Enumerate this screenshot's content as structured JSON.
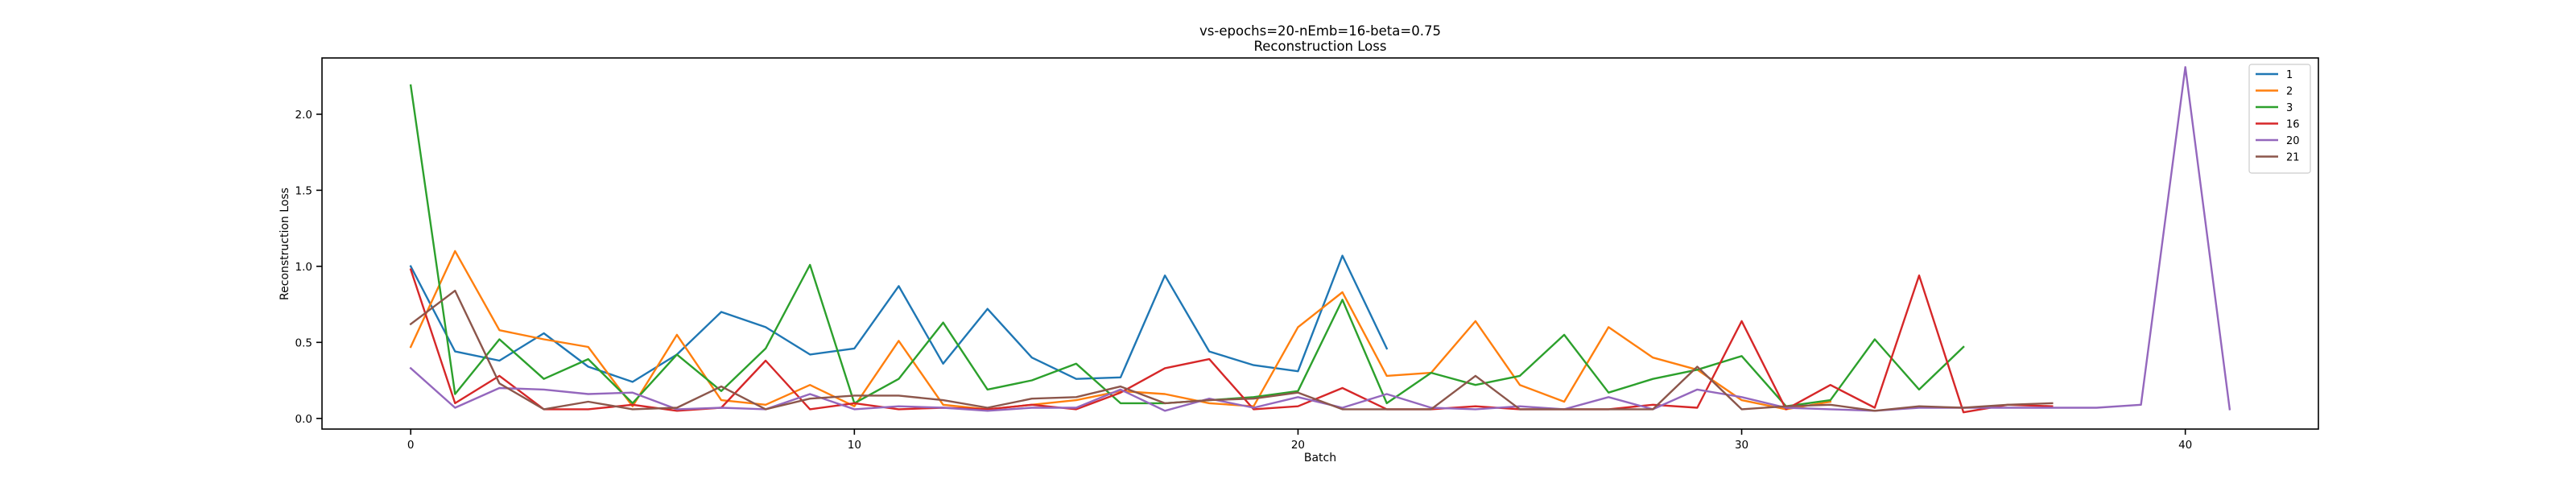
{
  "chart_data": {
    "type": "line",
    "title": "vs-epochs=20-nEmb=16-beta=0.75",
    "subtitle": "Reconstruction Loss",
    "xlabel": "Batch",
    "ylabel": "Reconstruction Loss",
    "xlim": [
      -2,
      43
    ],
    "ylim": [
      -0.07,
      2.37
    ],
    "xticks": [
      0,
      10,
      20,
      30,
      40
    ],
    "xtick_labels": [
      "0",
      "10",
      "20",
      "30",
      "40"
    ],
    "yticks": [
      0.0,
      0.5,
      1.0,
      1.5,
      2.0
    ],
    "ytick_labels": [
      "0.0",
      "0.5",
      "1.0",
      "1.5",
      "2.0"
    ],
    "grid": false,
    "legend_position": "top-right",
    "series": [
      {
        "name": "1",
        "color": "#1f77b4",
        "values": [
          1.0,
          0.44,
          0.38,
          0.56,
          0.34,
          0.24,
          0.42,
          0.7,
          0.6,
          0.42,
          0.46,
          0.87,
          0.36,
          0.72,
          0.4,
          0.26,
          0.27,
          0.94,
          0.44,
          0.35,
          0.31,
          1.07,
          0.46
        ]
      },
      {
        "name": "2",
        "color": "#ff7f0e",
        "values": [
          0.47,
          1.1,
          0.58,
          0.52,
          0.47,
          0.08,
          0.55,
          0.12,
          0.09,
          0.22,
          0.08,
          0.51,
          0.09,
          0.06,
          0.09,
          0.12,
          0.18,
          0.16,
          0.1,
          0.08,
          0.6,
          0.83,
          0.28,
          0.3,
          0.64,
          0.22,
          0.11,
          0.6,
          0.4,
          0.32,
          0.12,
          0.06,
          0.11
        ]
      },
      {
        "name": "3",
        "color": "#2ca02c",
        "values": [
          2.19,
          0.16,
          0.52,
          0.26,
          0.39,
          0.1,
          0.42,
          0.18,
          0.46,
          1.01,
          0.1,
          0.26,
          0.63,
          0.19,
          0.25,
          0.36,
          0.1,
          0.1,
          0.12,
          0.14,
          0.18,
          0.78,
          0.1,
          0.3,
          0.22,
          0.28,
          0.55,
          0.17,
          0.26,
          0.32,
          0.41,
          0.08,
          0.12,
          0.52,
          0.19,
          0.47
        ]
      },
      {
        "name": "16",
        "color": "#d62728",
        "values": [
          0.98,
          0.1,
          0.28,
          0.06,
          0.06,
          0.09,
          0.05,
          0.07,
          0.38,
          0.06,
          0.1,
          0.06,
          0.07,
          0.06,
          0.09,
          0.06,
          0.17,
          0.33,
          0.39,
          0.06,
          0.08,
          0.2,
          0.06,
          0.06,
          0.08,
          0.06,
          0.06,
          0.06,
          0.09,
          0.07,
          0.64,
          0.06,
          0.22,
          0.07,
          0.94,
          0.04,
          0.09,
          0.08
        ]
      },
      {
        "name": "20",
        "color": "#9467bd",
        "values": [
          0.33,
          0.07,
          0.2,
          0.19,
          0.16,
          0.17,
          0.06,
          0.07,
          0.06,
          0.16,
          0.06,
          0.08,
          0.07,
          0.05,
          0.07,
          0.07,
          0.19,
          0.05,
          0.13,
          0.07,
          0.14,
          0.07,
          0.16,
          0.07,
          0.06,
          0.08,
          0.06,
          0.14,
          0.06,
          0.19,
          0.14,
          0.07,
          0.06,
          0.05,
          0.07,
          0.07,
          0.07,
          0.07,
          0.07,
          0.09,
          2.31,
          0.06
        ]
      },
      {
        "name": "21",
        "color": "#8c564b",
        "values": [
          0.62,
          0.84,
          0.23,
          0.06,
          0.11,
          0.06,
          0.07,
          0.21,
          0.06,
          0.13,
          0.15,
          0.15,
          0.12,
          0.07,
          0.13,
          0.14,
          0.21,
          0.1,
          0.12,
          0.13,
          0.17,
          0.06,
          0.06,
          0.06,
          0.28,
          0.06,
          0.06,
          0.06,
          0.06,
          0.34,
          0.06,
          0.08,
          0.09,
          0.05,
          0.08,
          0.07,
          0.09,
          0.1
        ]
      }
    ]
  }
}
